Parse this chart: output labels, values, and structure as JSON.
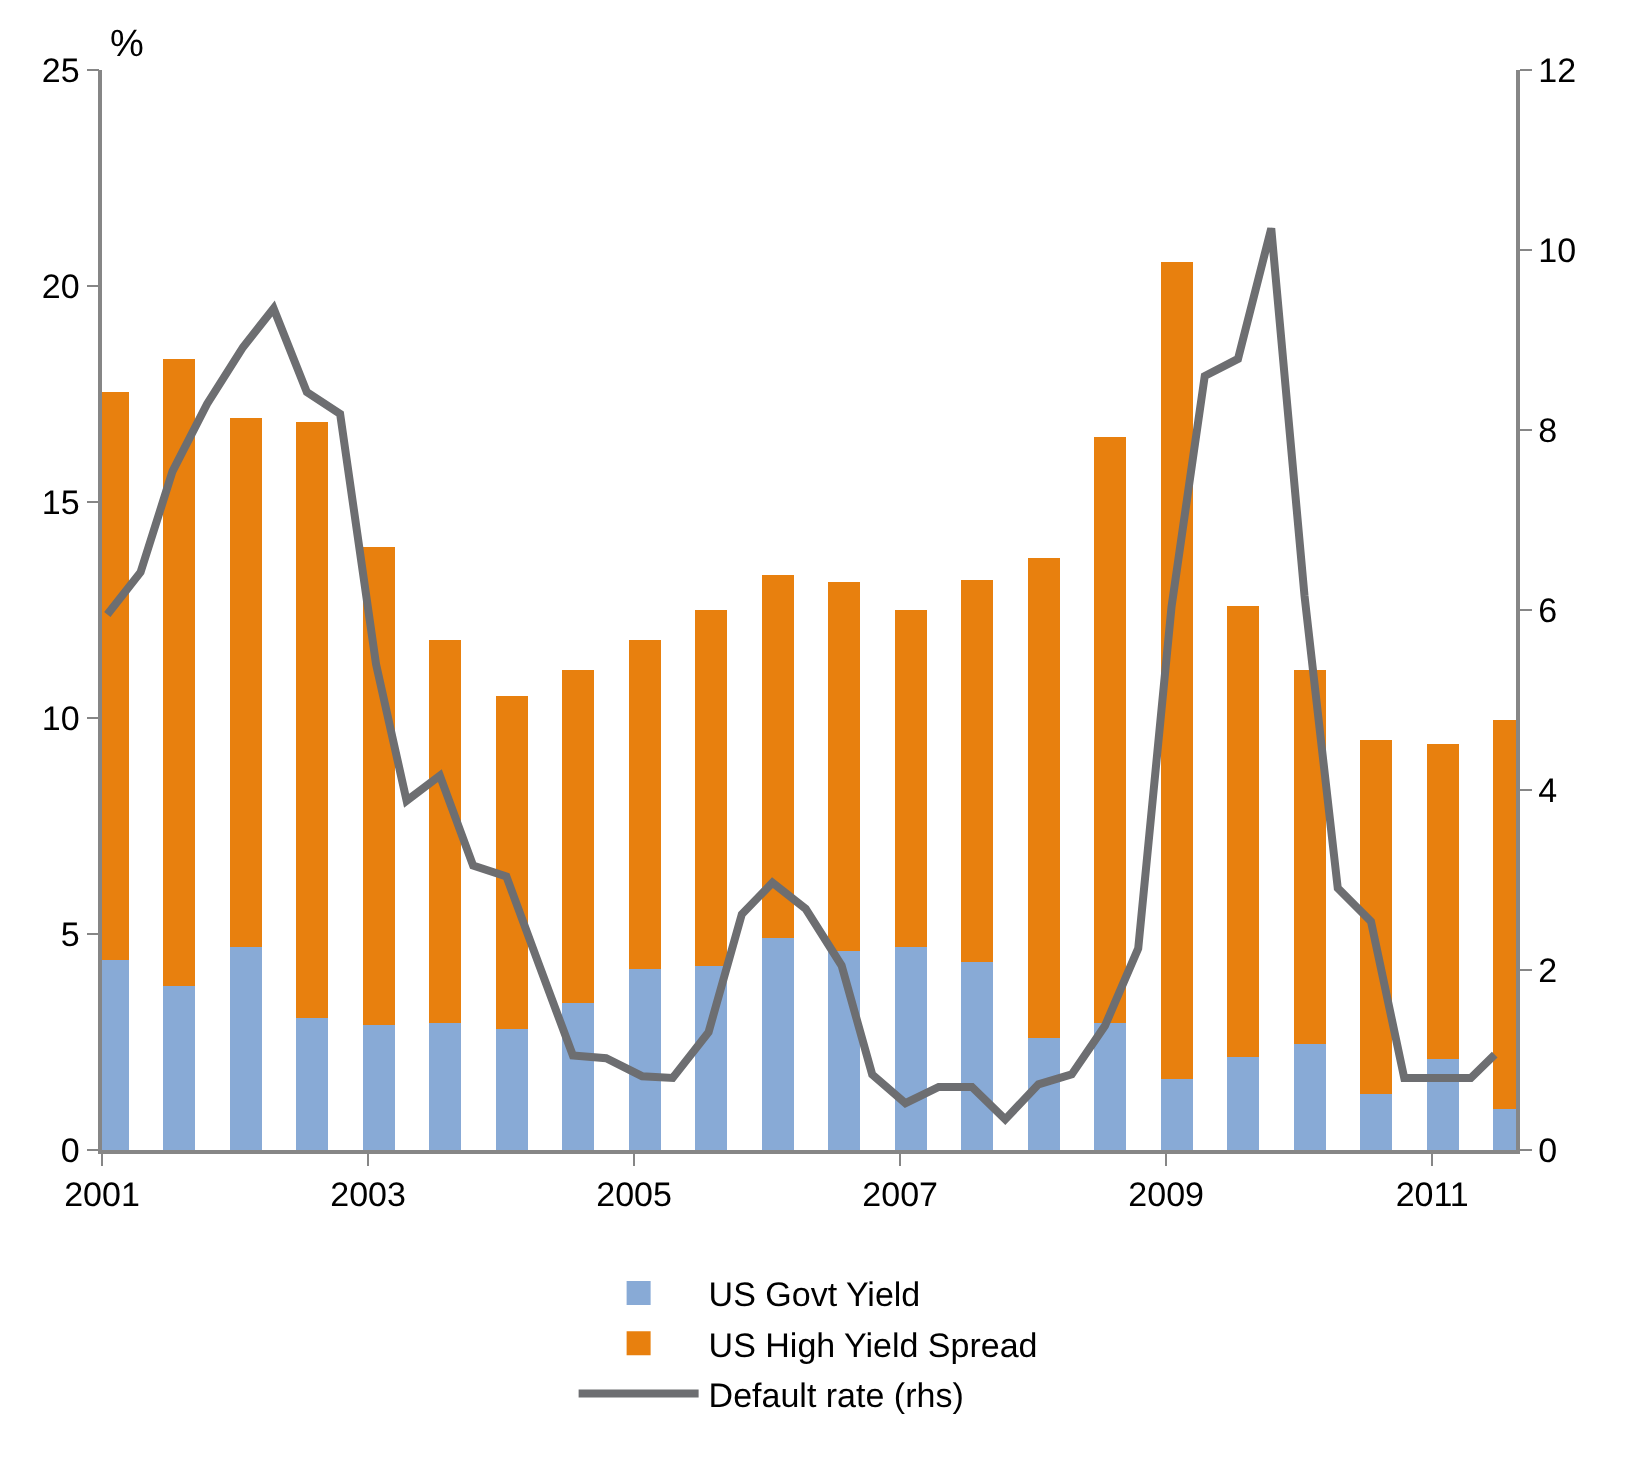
{
  "chart_data": {
    "type": "bar",
    "stacked": true,
    "ylabel": "%",
    "x": [
      2001.08,
      2001.58,
      2002.08,
      2002.58,
      2003.08,
      2003.58,
      2004.08,
      2004.58,
      2005.08,
      2005.58,
      2006.08,
      2006.58,
      2007.08,
      2007.58,
      2008.08,
      2008.58,
      2009.08,
      2009.58,
      2010.08,
      2010.58,
      2011.08,
      2011.58
    ],
    "series": [
      {
        "name": "US Govt Yield",
        "color": "#88aad6",
        "values": [
          4.4,
          3.8,
          4.7,
          3.05,
          2.9,
          2.95,
          2.8,
          3.4,
          4.2,
          4.25,
          4.9,
          4.6,
          4.7,
          4.35,
          2.6,
          2.95,
          1.65,
          2.15,
          2.45,
          1.3,
          2.1,
          0.95
        ]
      },
      {
        "name": "US High Yield Spread",
        "color": "#e8800e",
        "values": [
          13.15,
          14.5,
          12.25,
          13.8,
          11.05,
          8.85,
          7.7,
          7.7,
          7.6,
          8.25,
          8.4,
          8.55,
          7.8,
          8.85,
          11.1,
          13.55,
          18.9,
          10.45,
          8.65,
          8.2,
          7.3,
          9.0
        ]
      },
      {
        "name": "Default rate (rhs)",
        "type": "line",
        "axis": "y2",
        "color": "#6d6e71",
        "x": [
          2001.04,
          2001.29,
          2001.53,
          2001.79,
          2002.06,
          2002.29,
          2002.54,
          2002.79,
          2003.06,
          2003.29,
          2003.54,
          2003.79,
          2004.04,
          2004.29,
          2004.54,
          2004.79,
          2005.06,
          2005.29,
          2005.56,
          2005.81,
          2006.04,
          2006.29,
          2006.56,
          2006.79,
          2007.04,
          2007.29,
          2007.54,
          2007.79,
          2008.04,
          2008.29,
          2008.54,
          2008.79,
          2009.04,
          2009.29,
          2009.54,
          2009.79,
          2010.04,
          2010.29,
          2010.54,
          2010.79,
          2011.04,
          2011.29,
          2011.47
        ],
        "values": [
          5.95,
          6.42,
          7.54,
          8.29,
          8.92,
          9.35,
          8.42,
          8.18,
          5.4,
          3.88,
          4.16,
          3.16,
          3.04,
          2.04,
          1.05,
          1.02,
          0.82,
          0.8,
          1.31,
          2.62,
          2.97,
          2.68,
          2.05,
          0.84,
          0.52,
          0.7,
          0.7,
          0.34,
          0.73,
          0.84,
          1.38,
          2.24,
          6.03,
          8.6,
          8.79,
          10.24,
          6.16,
          2.91,
          2.54,
          0.8,
          0.8,
          0.8,
          1.06
        ]
      }
    ],
    "xlim": [
      2001,
      2011.63
    ],
    "xticks": [
      2001,
      2003,
      2005,
      2007,
      2009,
      2011
    ],
    "ylim": [
      0,
      25
    ],
    "yticks": [
      0,
      5,
      10,
      15,
      20,
      25
    ],
    "y2lim": [
      0,
      12
    ],
    "y2ticks": [
      0,
      2,
      4,
      6,
      8,
      10,
      12
    ],
    "legend": "bottom",
    "marker": "none",
    "line_style": "solid"
  }
}
